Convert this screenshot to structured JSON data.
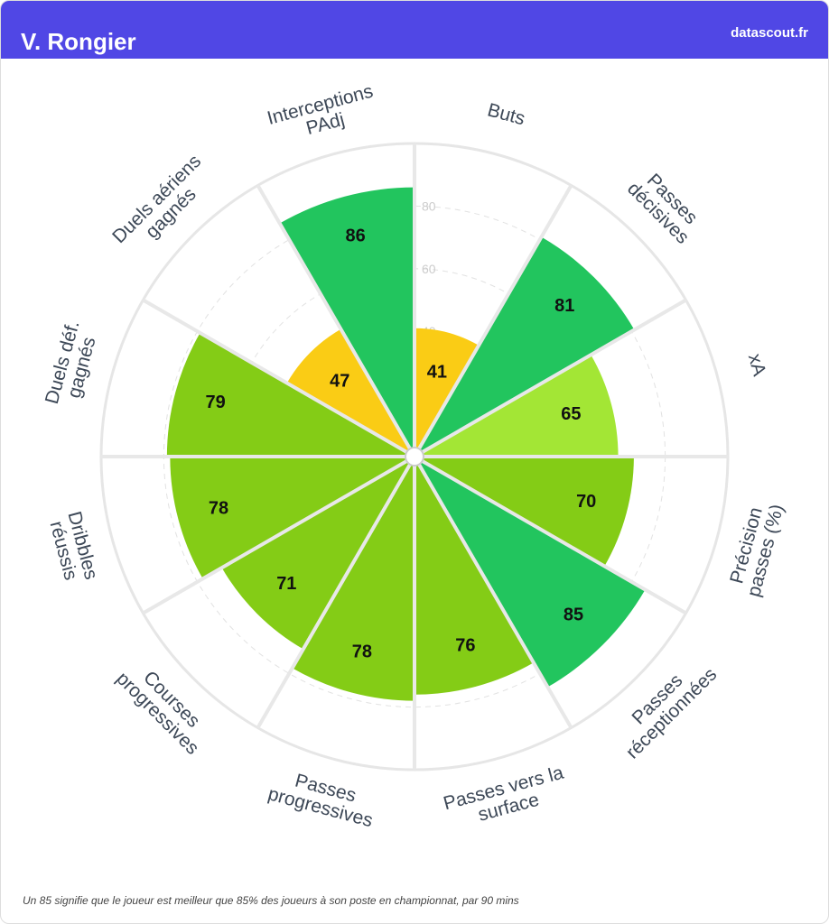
{
  "header": {
    "title": "V. Rongier",
    "brand": "datascout.fr"
  },
  "chart_data": {
    "type": "polar-bar",
    "categories": [
      [
        "Buts"
      ],
      [
        "Passes",
        "décisives"
      ],
      [
        "xA"
      ],
      [
        "Précision",
        "passes (%)"
      ],
      [
        "Passes",
        "réceptionnées"
      ],
      [
        "Passes vers la",
        "surface"
      ],
      [
        "Passes",
        "progressives"
      ],
      [
        "Courses",
        "progressives"
      ],
      [
        "Dribbles",
        "réussis"
      ],
      [
        "Duels déf.",
        "gagnés"
      ],
      [
        "Duels aériens",
        "gagnés"
      ],
      [
        "Interceptions",
        "PAdj"
      ]
    ],
    "values": [
      41,
      81,
      65,
      70,
      85,
      76,
      78,
      71,
      78,
      79,
      47,
      86
    ],
    "colors": [
      "#facc15",
      "#22c55e",
      "#a3e635",
      "#84cc16",
      "#22c55e",
      "#84cc16",
      "#84cc16",
      "#84cc16",
      "#84cc16",
      "#84cc16",
      "#facc15",
      "#22c55e"
    ],
    "ylim": [
      0,
      100
    ],
    "yticks": [
      20,
      40,
      60,
      80
    ],
    "grid": true
  },
  "footer": {
    "note": "Un 85 signifie que le joueur est meilleur que 85% des joueurs à son poste en championnat, par 90 mins"
  }
}
